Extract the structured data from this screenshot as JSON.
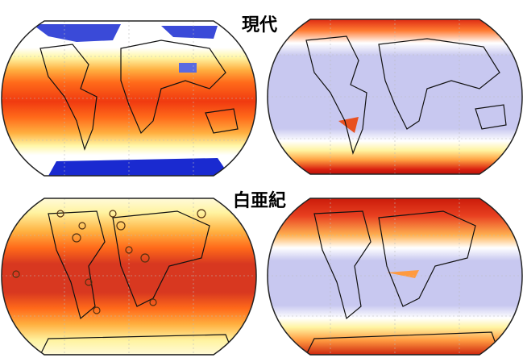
{
  "labels": {
    "top": "現代",
    "bottom": "白亜紀"
  }
}
